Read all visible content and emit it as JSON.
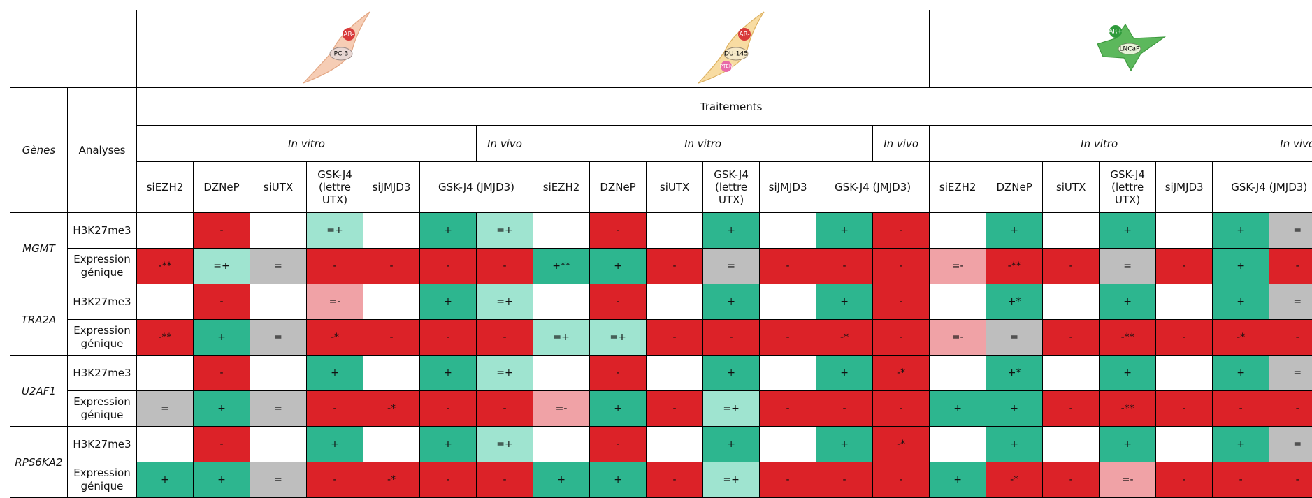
{
  "cell_lines": [
    {
      "name": "PC-3",
      "receptor": "AR-"
    },
    {
      "name": "DU-145",
      "receptor": "AR-",
      "marker": "PTEN"
    },
    {
      "name": "LNCaP",
      "receptor": "AR+"
    }
  ],
  "header": {
    "genes": "Gènes",
    "analyses": "Analyses",
    "treatments_title": "Traitements",
    "in_vitro": "In vitro",
    "in_vivo": "In vivo"
  },
  "treatments": [
    "siEZH2",
    "DZNeP",
    "siUTX",
    "GSK-J4 (lettre UTX)",
    "siJMJD3",
    "GSK-J4 (JMJD3)"
  ],
  "analyses": [
    "H3K27me3",
    "Expression génique"
  ],
  "palette": {
    "R": "#dc2228",
    "G": "#2db68f",
    "g": "#9fe4d0",
    "r": "#f0a2a6",
    "S": "#bebebe",
    "W": "#ffffff"
  },
  "genes": [
    {
      "name": "MGMT",
      "rows": [
        [
          {
            "c": "W"
          },
          {
            "t": "-",
            "c": "R"
          },
          {
            "c": "W"
          },
          {
            "t": "=+",
            "c": "g"
          },
          {
            "c": "W"
          },
          {
            "t": "+",
            "c": "G"
          },
          {
            "t": "=+",
            "c": "g"
          },
          {
            "c": "W"
          },
          {
            "t": "-",
            "c": "R"
          },
          {
            "c": "W"
          },
          {
            "t": "+",
            "c": "G"
          },
          {
            "c": "W"
          },
          {
            "t": "+",
            "c": "G"
          },
          {
            "t": "-",
            "c": "R"
          },
          {
            "c": "W"
          },
          {
            "t": "+",
            "c": "G"
          },
          {
            "c": "W"
          },
          {
            "t": "+",
            "c": "G"
          },
          {
            "c": "W"
          },
          {
            "t": "+",
            "c": "G"
          },
          {
            "t": "=",
            "c": "S"
          }
        ],
        [
          {
            "t": "-**",
            "c": "R"
          },
          {
            "t": "=+",
            "c": "g"
          },
          {
            "t": "=",
            "c": "S"
          },
          {
            "t": "-",
            "c": "R"
          },
          {
            "t": "-",
            "c": "R"
          },
          {
            "t": "-",
            "c": "R"
          },
          {
            "t": "-",
            "c": "R"
          },
          {
            "t": "+**",
            "c": "G"
          },
          {
            "t": "+",
            "c": "G"
          },
          {
            "t": "-",
            "c": "R"
          },
          {
            "t": "=",
            "c": "S"
          },
          {
            "t": "-",
            "c": "R"
          },
          {
            "t": "-",
            "c": "R"
          },
          {
            "t": "-",
            "c": "R"
          },
          {
            "t": "=-",
            "c": "r"
          },
          {
            "t": "-**",
            "c": "R"
          },
          {
            "t": "-",
            "c": "R"
          },
          {
            "t": "=",
            "c": "S"
          },
          {
            "t": "-",
            "c": "R"
          },
          {
            "t": "+",
            "c": "G"
          },
          {
            "t": "-",
            "c": "R"
          }
        ]
      ]
    },
    {
      "name": "TRA2A",
      "rows": [
        [
          {
            "c": "W"
          },
          {
            "t": "-",
            "c": "R"
          },
          {
            "c": "W"
          },
          {
            "t": "=-",
            "c": "r"
          },
          {
            "c": "W"
          },
          {
            "t": "+",
            "c": "G"
          },
          {
            "t": "=+",
            "c": "g"
          },
          {
            "c": "W"
          },
          {
            "t": "-",
            "c": "R"
          },
          {
            "c": "W"
          },
          {
            "t": "+",
            "c": "G"
          },
          {
            "c": "W"
          },
          {
            "t": "+",
            "c": "G"
          },
          {
            "t": "-",
            "c": "R"
          },
          {
            "c": "W"
          },
          {
            "t": "+*",
            "c": "G"
          },
          {
            "c": "W"
          },
          {
            "t": "+",
            "c": "G"
          },
          {
            "c": "W"
          },
          {
            "t": "+",
            "c": "G"
          },
          {
            "t": "=",
            "c": "S"
          }
        ],
        [
          {
            "t": "-**",
            "c": "R"
          },
          {
            "t": "+",
            "c": "G"
          },
          {
            "t": "=",
            "c": "S"
          },
          {
            "t": "-*",
            "c": "R"
          },
          {
            "t": "-",
            "c": "R"
          },
          {
            "t": "-",
            "c": "R"
          },
          {
            "t": "-",
            "c": "R"
          },
          {
            "t": "=+",
            "c": "g"
          },
          {
            "t": "=+",
            "c": "g"
          },
          {
            "t": "-",
            "c": "R"
          },
          {
            "t": "-",
            "c": "R"
          },
          {
            "t": "-",
            "c": "R"
          },
          {
            "t": "-*",
            "c": "R"
          },
          {
            "t": "-",
            "c": "R"
          },
          {
            "t": "=-",
            "c": "r"
          },
          {
            "t": "=",
            "c": "S"
          },
          {
            "t": "-",
            "c": "R"
          },
          {
            "t": "-**",
            "c": "R"
          },
          {
            "t": "-",
            "c": "R"
          },
          {
            "t": "-*",
            "c": "R"
          },
          {
            "t": "-",
            "c": "R"
          }
        ]
      ]
    },
    {
      "name": "U2AF1",
      "rows": [
        [
          {
            "c": "W"
          },
          {
            "t": "-",
            "c": "R"
          },
          {
            "c": "W"
          },
          {
            "t": "+",
            "c": "G"
          },
          {
            "c": "W"
          },
          {
            "t": "+",
            "c": "G"
          },
          {
            "t": "=+",
            "c": "g"
          },
          {
            "c": "W"
          },
          {
            "t": "-",
            "c": "R"
          },
          {
            "c": "W"
          },
          {
            "t": "+",
            "c": "G"
          },
          {
            "c": "W"
          },
          {
            "t": "+",
            "c": "G"
          },
          {
            "t": "-*",
            "c": "R"
          },
          {
            "c": "W"
          },
          {
            "t": "+*",
            "c": "G"
          },
          {
            "c": "W"
          },
          {
            "t": "+",
            "c": "G"
          },
          {
            "c": "W"
          },
          {
            "t": "+",
            "c": "G"
          },
          {
            "t": "=",
            "c": "S"
          }
        ],
        [
          {
            "t": "=",
            "c": "S"
          },
          {
            "t": "+",
            "c": "G"
          },
          {
            "t": "=",
            "c": "S"
          },
          {
            "t": "-",
            "c": "R"
          },
          {
            "t": "-*",
            "c": "R"
          },
          {
            "t": "-",
            "c": "R"
          },
          {
            "t": "-",
            "c": "R"
          },
          {
            "t": "=-",
            "c": "r"
          },
          {
            "t": "+",
            "c": "G"
          },
          {
            "t": "-",
            "c": "R"
          },
          {
            "t": "=+",
            "c": "g"
          },
          {
            "t": "-",
            "c": "R"
          },
          {
            "t": "-",
            "c": "R"
          },
          {
            "t": "-",
            "c": "R"
          },
          {
            "t": "+",
            "c": "G"
          },
          {
            "t": "+",
            "c": "G"
          },
          {
            "t": "-",
            "c": "R"
          },
          {
            "t": "-**",
            "c": "R"
          },
          {
            "t": "-",
            "c": "R"
          },
          {
            "t": "-",
            "c": "R"
          },
          {
            "t": "-",
            "c": "R"
          }
        ]
      ]
    },
    {
      "name": "RPS6KA2",
      "rows": [
        [
          {
            "c": "W"
          },
          {
            "t": "-",
            "c": "R"
          },
          {
            "c": "W"
          },
          {
            "t": "+",
            "c": "G"
          },
          {
            "c": "W"
          },
          {
            "t": "+",
            "c": "G"
          },
          {
            "t": "=+",
            "c": "g"
          },
          {
            "c": "W"
          },
          {
            "t": "-",
            "c": "R"
          },
          {
            "c": "W"
          },
          {
            "t": "+",
            "c": "G"
          },
          {
            "c": "W"
          },
          {
            "t": "+",
            "c": "G"
          },
          {
            "t": "-*",
            "c": "R"
          },
          {
            "c": "W"
          },
          {
            "t": "+",
            "c": "G"
          },
          {
            "c": "W"
          },
          {
            "t": "+",
            "c": "G"
          },
          {
            "c": "W"
          },
          {
            "t": "+",
            "c": "G"
          },
          {
            "t": "=",
            "c": "S"
          }
        ],
        [
          {
            "t": "+",
            "c": "G"
          },
          {
            "t": "+",
            "c": "G"
          },
          {
            "t": "=",
            "c": "S"
          },
          {
            "t": "-",
            "c": "R"
          },
          {
            "t": "-*",
            "c": "R"
          },
          {
            "t": "-",
            "c": "R"
          },
          {
            "t": "-",
            "c": "R"
          },
          {
            "t": "+",
            "c": "G"
          },
          {
            "t": "+",
            "c": "G"
          },
          {
            "t": "-",
            "c": "R"
          },
          {
            "t": "=+",
            "c": "g"
          },
          {
            "t": "-",
            "c": "R"
          },
          {
            "t": "-",
            "c": "R"
          },
          {
            "t": "-",
            "c": "R"
          },
          {
            "t": "+",
            "c": "G"
          },
          {
            "t": "-*",
            "c": "R"
          },
          {
            "t": "-",
            "c": "R"
          },
          {
            "t": "=-",
            "c": "r"
          },
          {
            "t": "-",
            "c": "R"
          },
          {
            "t": "-",
            "c": "R"
          },
          {
            "t": "-",
            "c": "R"
          }
        ]
      ]
    }
  ]
}
